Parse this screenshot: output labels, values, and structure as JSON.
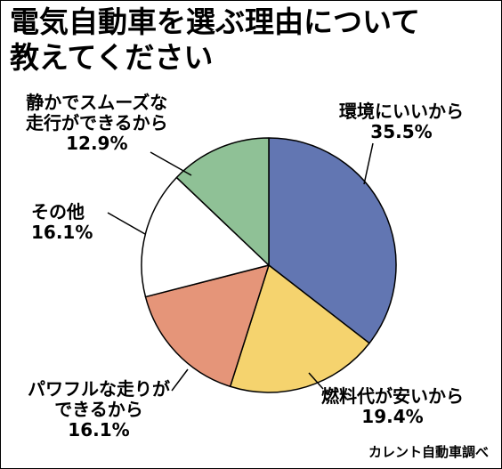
{
  "chart_data": {
    "type": "pie",
    "title": "電気自動車を選ぶ理由について\n教えてください",
    "title_lines": [
      "電気自動車を選ぶ理由について",
      "教えてください"
    ],
    "source": "カレント自動車調べ",
    "slices": [
      {
        "label": "環境にいいから",
        "label_lines": [
          "環境にいいから"
        ],
        "value": 35.5,
        "value_text": "35.5%",
        "color": "#6276b2"
      },
      {
        "label": "燃料代が安いから",
        "label_lines": [
          "燃料代が安いから"
        ],
        "value": 19.4,
        "value_text": "19.4%",
        "color": "#f5d36e"
      },
      {
        "label": "パワフルな走りができるから",
        "label_lines": [
          "パワフルな走りが",
          "できるから"
        ],
        "value": 16.1,
        "value_text": "16.1%",
        "color": "#e59579"
      },
      {
        "label": "その他",
        "label_lines": [
          "その他"
        ],
        "value": 16.1,
        "value_text": "16.1%",
        "color": "#ffffff"
      },
      {
        "label": "静かでスムーズな走行ができるから",
        "label_lines": [
          "静かでスムーズな",
          "走行ができるから"
        ],
        "value": 12.9,
        "value_text": "12.9%",
        "color": "#8fc196"
      }
    ]
  }
}
